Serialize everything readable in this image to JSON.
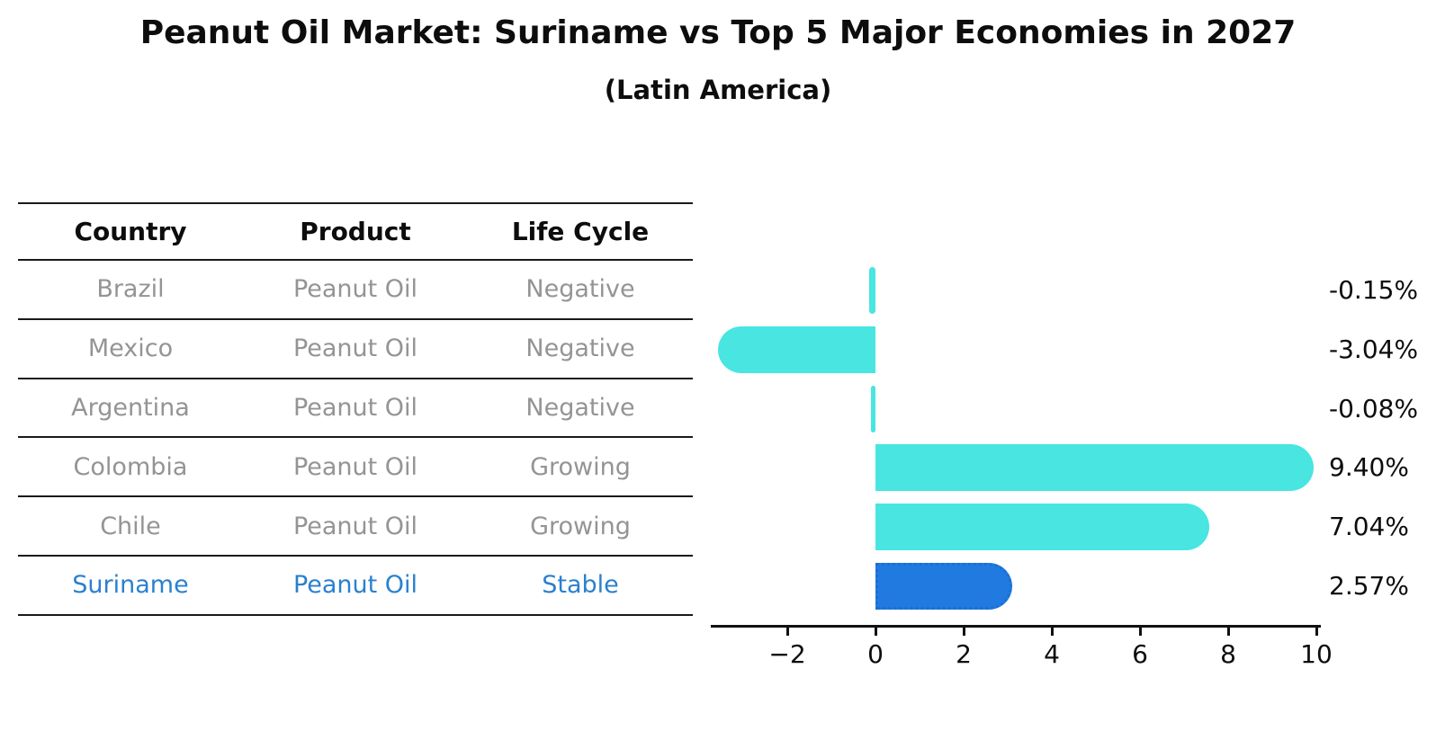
{
  "header": {
    "title": "Peanut Oil Market: Suriname vs Top 5 Major Economies in 2027",
    "subtitle": "(Latin America)"
  },
  "table": {
    "headers": [
      "Country",
      "Product",
      "Life Cycle"
    ],
    "rows": [
      {
        "country": "Brazil",
        "product": "Peanut Oil",
        "life_cycle": "Negative",
        "highlight": false
      },
      {
        "country": "Mexico",
        "product": "Peanut Oil",
        "life_cycle": "Negative",
        "highlight": false
      },
      {
        "country": "Argentina",
        "product": "Peanut Oil",
        "life_cycle": "Negative",
        "highlight": false
      },
      {
        "country": "Colombia",
        "product": "Peanut Oil",
        "life_cycle": "Growing",
        "highlight": false
      },
      {
        "country": "Chile",
        "product": "Peanut Oil",
        "life_cycle": "Growing",
        "highlight": false
      },
      {
        "country": "Suriname",
        "product": "Peanut Oil",
        "life_cycle": "Stable",
        "highlight": true
      }
    ]
  },
  "chart_data": {
    "type": "bar",
    "orientation": "horizontal",
    "title": "Peanut Oil Market: Suriname vs Top 5 Major Economies in 2027",
    "subtitle": "(Latin America)",
    "categories": [
      "Brazil",
      "Mexico",
      "Argentina",
      "Colombia",
      "Chile",
      "Suriname"
    ],
    "values": [
      -0.15,
      -3.04,
      -0.08,
      9.4,
      7.04,
      2.57
    ],
    "value_labels": [
      "-0.15%",
      "-3.04%",
      "-0.08%",
      "9.40%",
      "7.04%",
      "2.57%"
    ],
    "x_ticks": [
      -2,
      0,
      2,
      4,
      6,
      8,
      10
    ],
    "x_tick_labels": [
      "−2",
      "0",
      "2",
      "4",
      "6",
      "8",
      "10"
    ],
    "xlim": [
      -3.75,
      10.1
    ],
    "grid": false,
    "legend": false,
    "bar_color": "#48E5E1",
    "highlight_bar_color": "#207AE0",
    "highlight_index": 5,
    "highlight_bar_style": "dotted-border"
  },
  "colors": {
    "text": "#0d0d0d",
    "muted_row_text": "#949494",
    "highlight_text": "#2B80CE",
    "bar": "#48E5E1",
    "highlight_bar": "#207AE0",
    "axis": "#111111"
  }
}
